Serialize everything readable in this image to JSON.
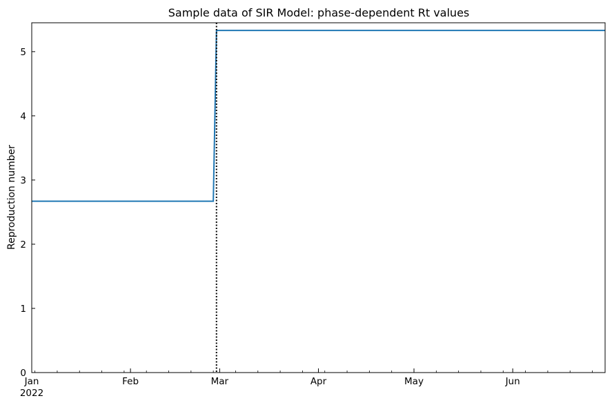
{
  "chart_data": {
    "type": "line",
    "title": "Sample data of SIR Model: phase-dependent Rt values",
    "xlabel": "",
    "ylabel": "Reproduction number",
    "x_range": [
      "2022-01-01",
      "2022-06-30"
    ],
    "ylim": [
      0,
      5.45
    ],
    "y_ticks": [
      0,
      1,
      2,
      3,
      4,
      5
    ],
    "x_ticks": [
      {
        "date": "2022-01-01",
        "label": "Jan",
        "sublabel": "2022"
      },
      {
        "date": "2022-02-01",
        "label": "Feb",
        "sublabel": ""
      },
      {
        "date": "2022-03-01",
        "label": "Mar",
        "sublabel": ""
      },
      {
        "date": "2022-04-01",
        "label": "Apr",
        "sublabel": ""
      },
      {
        "date": "2022-05-01",
        "label": "May",
        "sublabel": ""
      },
      {
        "date": "2022-06-01",
        "label": "Jun",
        "sublabel": ""
      }
    ],
    "grid": false,
    "series": [
      {
        "color": "#1f77b4",
        "points": [
          {
            "x": "2022-01-01",
            "y": 2.67
          },
          {
            "x": "2022-02-27",
            "y": 2.67
          },
          {
            "x": "2022-02-28",
            "y": 5.33
          },
          {
            "x": "2022-06-30",
            "y": 5.33
          }
        ]
      }
    ],
    "vlines": [
      {
        "x": "2022-02-28",
        "style": "dotted",
        "color": "#000000"
      }
    ]
  }
}
